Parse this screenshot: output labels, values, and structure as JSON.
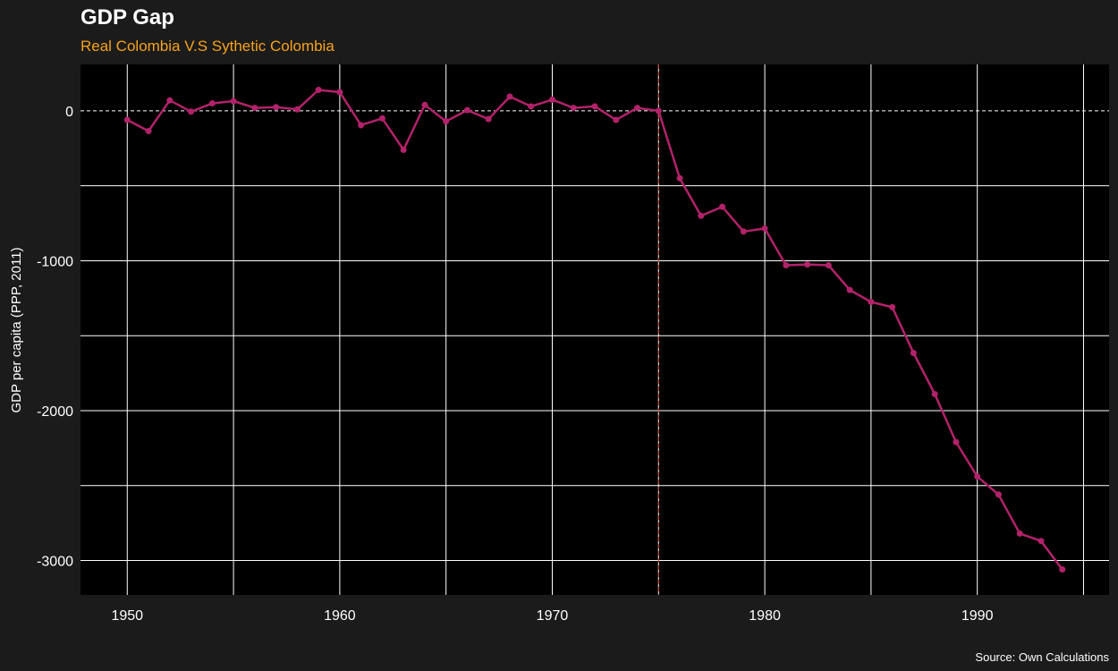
{
  "chart_data": {
    "type": "line",
    "title": "GDP Gap",
    "subtitle": "Real Colombia V.S Sythetic Colombia",
    "caption": "Source: Own Calculations",
    "xlabel": "",
    "ylabel": "GDP per capita (PPP, 2011)",
    "xlim": [
      1947.8,
      1996.2
    ],
    "ylim": [
      -3230,
      310
    ],
    "x_ticks": [
      1950,
      1960,
      1970,
      1980,
      1990
    ],
    "x_tick_labels": [
      "1950",
      "1960",
      "1970",
      "1980",
      "1990"
    ],
    "x_minor_ticks": [
      1955,
      1965,
      1975,
      1985,
      1995
    ],
    "y_ticks": [
      0,
      -1000,
      -2000,
      -3000
    ],
    "y_tick_labels": [
      "0",
      "-1000",
      "-2000",
      "-3000"
    ],
    "y_minor_ticks": [
      -500,
      -1500,
      -2500
    ],
    "grid": true,
    "reference_lines": {
      "horizontal_zero": 0,
      "vertical_treatment_year": 1975
    },
    "series": [
      {
        "x": [
          1950,
          1951,
          1952,
          1953,
          1954,
          1955,
          1956,
          1957,
          1958,
          1959,
          1960,
          1961,
          1962,
          1963,
          1964,
          1965,
          1966,
          1967,
          1968,
          1969,
          1970,
          1971,
          1972,
          1973,
          1974,
          1975,
          1976,
          1977,
          1978,
          1979,
          1980,
          1981,
          1982,
          1983,
          1984,
          1985,
          1986,
          1987,
          1988,
          1989,
          1990,
          1991,
          1992,
          1993,
          1994
        ],
        "values": [
          -60,
          -135,
          70,
          -5,
          50,
          65,
          20,
          25,
          10,
          140,
          125,
          -95,
          -50,
          -260,
          40,
          -70,
          5,
          -55,
          95,
          30,
          75,
          20,
          30,
          -60,
          20,
          0,
          -450,
          -700,
          -640,
          -805,
          -785,
          -1030,
          -1025,
          -1030,
          -1195,
          -1275,
          -1310,
          -1615,
          -1890,
          -2210,
          -2440,
          -2560,
          -2820,
          -2870,
          -3060
        ]
      }
    ],
    "colors": {
      "background": "#1b1b1b",
      "panel": "#000000",
      "grid": "#ffffff",
      "line": "#b2226a",
      "zero_line": "#ffffff",
      "treatment_line": "#b5341d",
      "subtitle": "#f5a21b"
    }
  }
}
